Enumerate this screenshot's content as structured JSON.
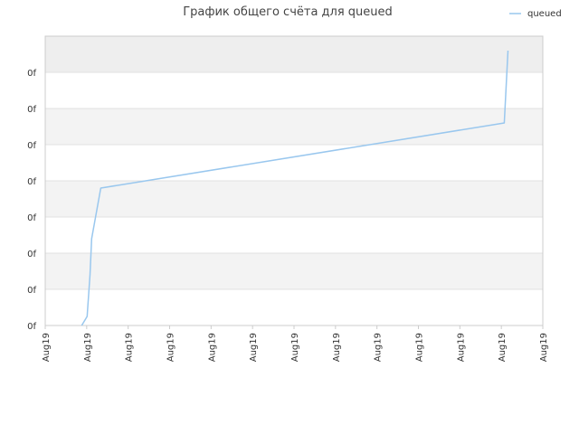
{
  "chart_data": {
    "type": "line",
    "title": "График общего счёта для queued",
    "xlabel": "",
    "ylabel": "",
    "legend": {
      "placement": "top-right",
      "entries": [
        "queued"
      ]
    },
    "grid": true,
    "x_tick_labels": [
      "Aug19",
      "Aug19",
      "Aug19",
      "Aug19",
      "Aug19",
      "Aug19",
      "Aug19",
      "Aug19",
      "Aug19",
      "Aug19",
      "Aug19",
      "Aug19",
      "Aug19"
    ],
    "y_tick_labels": [
      "0f",
      "0f",
      "0f",
      "0f",
      "0f",
      "0f",
      "0f",
      "0f"
    ],
    "xlim": [
      0,
      12
    ],
    "ylim": [
      0,
      8
    ],
    "series": [
      {
        "name": "queued",
        "color": "#99c7ee",
        "x": [
          0.88,
          1.01,
          1.08,
          1.12,
          1.34,
          11.07,
          11.16
        ],
        "y": [
          0.0,
          0.25,
          1.4,
          2.4,
          3.8,
          5.6,
          7.6
        ]
      }
    ],
    "colors": {
      "band_a": "#f3f3f3",
      "band_b": "#ffffff",
      "band_top": "#eeeeee",
      "grid": "#e2e2e2",
      "axis": "#cccccc"
    }
  }
}
